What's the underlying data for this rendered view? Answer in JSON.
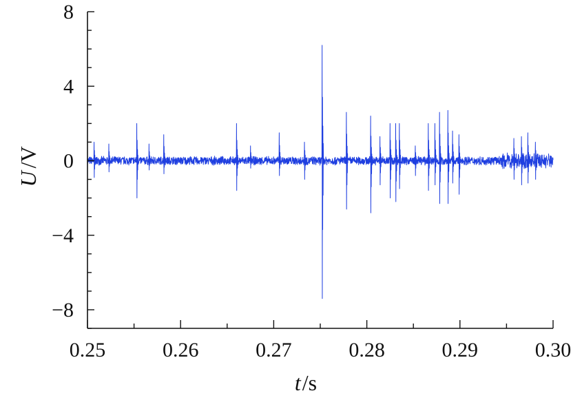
{
  "chart_data": {
    "type": "line",
    "title": "",
    "xlabel_var": "t",
    "xlabel_unit": "/s",
    "ylabel_var": "U",
    "ylabel_unit": "/V",
    "xlim": [
      0.25,
      0.3
    ],
    "ylim": [
      -9,
      8
    ],
    "x_ticks": [
      0.25,
      0.26,
      0.27,
      0.28,
      0.29,
      0.3
    ],
    "x_tick_labels": [
      "0.25",
      "0.26",
      "0.27",
      "0.28",
      "0.29",
      "0.30"
    ],
    "y_ticks": [
      8,
      4,
      0,
      -4,
      -8
    ],
    "y_tick_labels": [
      "8",
      "4",
      "0",
      "−4",
      "−8"
    ],
    "grid": false,
    "series": [
      {
        "color": "#1f3fe0",
        "noise_amplitude": 0.25,
        "noise_amplitude_late": 0.45,
        "pulses": [
          {
            "x": 0.2507,
            "max": 1.0,
            "min": -0.9
          },
          {
            "x": 0.2523,
            "max": 0.9,
            "min": -0.6
          },
          {
            "x": 0.2553,
            "max": 2.0,
            "min": -2.0
          },
          {
            "x": 0.2566,
            "max": 0.9,
            "min": -0.5
          },
          {
            "x": 0.2582,
            "max": 1.4,
            "min": -0.7
          },
          {
            "x": 0.266,
            "max": 2.0,
            "min": -1.6
          },
          {
            "x": 0.2675,
            "max": 0.8,
            "min": -0.4
          },
          {
            "x": 0.2706,
            "max": 1.5,
            "min": -0.8
          },
          {
            "x": 0.2733,
            "max": 1.0,
            "min": -1.0
          },
          {
            "x": 0.2752,
            "max": 6.2,
            "min": -7.4
          },
          {
            "x": 0.2778,
            "max": 2.6,
            "min": -2.6
          },
          {
            "x": 0.2804,
            "max": 2.4,
            "min": -2.8
          },
          {
            "x": 0.2814,
            "max": 1.3,
            "min": -1.3
          },
          {
            "x": 0.2825,
            "max": 2.0,
            "min": -2.0
          },
          {
            "x": 0.2831,
            "max": 2.0,
            "min": -2.2
          },
          {
            "x": 0.2835,
            "max": 2.0,
            "min": -1.5
          },
          {
            "x": 0.2852,
            "max": 0.8,
            "min": -0.8
          },
          {
            "x": 0.2866,
            "max": 2.0,
            "min": -1.6
          },
          {
            "x": 0.2873,
            "max": 2.0,
            "min": -1.3
          },
          {
            "x": 0.2878,
            "max": 2.6,
            "min": -2.3
          },
          {
            "x": 0.2887,
            "max": 2.7,
            "min": -2.3
          },
          {
            "x": 0.2892,
            "max": 1.6,
            "min": -1.2
          },
          {
            "x": 0.2899,
            "max": 1.4,
            "min": -1.8
          },
          {
            "x": 0.2958,
            "max": 1.2,
            "min": -1.0
          },
          {
            "x": 0.2966,
            "max": 1.3,
            "min": -1.3
          },
          {
            "x": 0.2973,
            "max": 1.5,
            "min": -1.2
          },
          {
            "x": 0.2981,
            "max": 1.0,
            "min": -1.0
          }
        ]
      }
    ]
  }
}
